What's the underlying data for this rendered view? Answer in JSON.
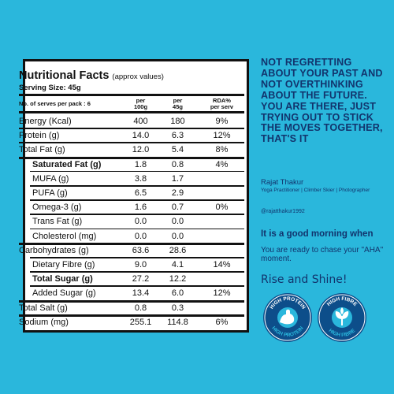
{
  "colors": {
    "background": "#2ab7dc",
    "panel": "#ffffff",
    "navy": "#12346d",
    "badge_fill": "#0d4e8a",
    "badge_ring": "#ffffff"
  },
  "nutrition": {
    "title": "Nutritional Facts",
    "subtitle": "(approx values)",
    "serving": "Serving Size: 45g",
    "header": {
      "serves": "No. of serves per pack : 6",
      "col1_line1": "per",
      "col1_line2": "100g",
      "col2_line1": "per",
      "col2_line2": "45g",
      "col3_line1": "RDA%",
      "col3_line2": "per serv"
    },
    "rows": [
      {
        "name": "Energy (Kcal)",
        "per100": "400",
        "per45": "180",
        "rda": "9%"
      },
      {
        "name": "Protein (g)",
        "per100": "14.0",
        "per45": "6.3",
        "rda": "12%"
      },
      {
        "name": "Total Fat (g)",
        "per100": "12.0",
        "per45": "5.4",
        "rda": "8%"
      },
      {
        "name": "Saturated Fat (g)",
        "per100": "1.8",
        "per45": "0.8",
        "rda": "4%"
      },
      {
        "name": "MUFA (g)",
        "per100": "3.8",
        "per45": "1.7",
        "rda": ""
      },
      {
        "name": "PUFA (g)",
        "per100": "6.5",
        "per45": "2.9",
        "rda": ""
      },
      {
        "name": "Omega-3 (g)",
        "per100": "1.6",
        "per45": "0.7",
        "rda": "0%"
      },
      {
        "name": "Trans Fat (g)",
        "per100": "0.0",
        "per45": "0.0",
        "rda": ""
      },
      {
        "name": "Cholesterol (mg)",
        "per100": "0.0",
        "per45": "0.0",
        "rda": ""
      },
      {
        "name": "Carbohydrates (g)",
        "per100": "63.6",
        "per45": "28.6",
        "rda": ""
      },
      {
        "name": "Dietary Fibre (g)",
        "per100": "9.0",
        "per45": "4.1",
        "rda": "14%"
      },
      {
        "name": "Total Sugar (g)",
        "per100": "27.2",
        "per45": "12.2",
        "rda": ""
      },
      {
        "name": "Added Sugar (g)",
        "per100": "13.4",
        "per45": "6.0",
        "rda": "12%"
      },
      {
        "name": "Total Salt (g)",
        "per100": "0.8",
        "per45": "0.3",
        "rda": ""
      },
      {
        "name": "Sodium (mg)",
        "per100": "255.1",
        "per45": "114.8",
        "rda": "6%"
      }
    ]
  },
  "quote": {
    "text": "NOT REGRETTING ABOUT YOUR PAST AND NOT OVERTHINKING ABOUT THE FUTURE. YOU ARE THERE, JUST TRYING OUT TO STICK THE MOVES TOGETHER, THAT'S IT",
    "author": "Rajat Thakur",
    "role": "Yoga Practitioner | Climber Skier | Photographer",
    "handle": "@rajatthakur1992"
  },
  "promo": {
    "good_morning": "It is a good morning when",
    "ready": "You are ready to chase your \"AHA\" moment.",
    "rise": "Rise and Shine!"
  },
  "badges": {
    "protein_top": "HIGH PROTEIN",
    "protein_bottom": "HIGH PROTEIN",
    "protein_icon": "flexed-arm-icon",
    "fibre_top": "HIGH FIBRE",
    "fibre_bottom": "HIGH FIBRE",
    "fibre_icon": "leaf-icon"
  }
}
